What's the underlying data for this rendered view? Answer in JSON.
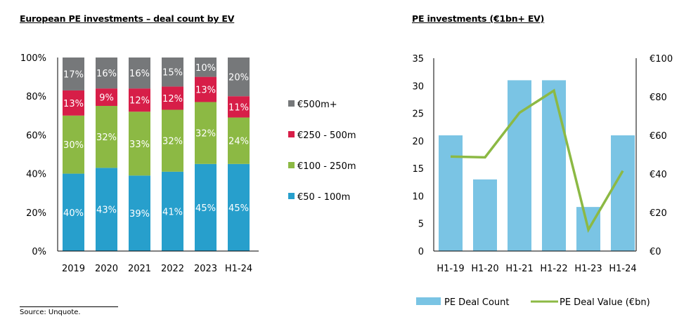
{
  "source": "Source:  Unquote.",
  "chart_data": [
    {
      "type": "bar",
      "stacked": true,
      "percent": true,
      "title": "European PE investments – deal count by EV",
      "xlabel": "",
      "ylabel": "",
      "ylim": [
        0,
        100
      ],
      "yticks": [
        "0%",
        "20%",
        "40%",
        "60%",
        "80%",
        "100%"
      ],
      "categories": [
        "2019",
        "2020",
        "2021",
        "2022",
        "2023",
        "H1-24"
      ],
      "series": [
        {
          "name": "€50 - 100m",
          "color": "#279fcc",
          "values": [
            40,
            43,
            39,
            41,
            45,
            45
          ]
        },
        {
          "name": "€100 - 250m",
          "color": "#8cb944",
          "values": [
            30,
            32,
            33,
            32,
            32,
            24
          ]
        },
        {
          "name": "€250 - 500m",
          "color": "#d71e48",
          "values": [
            13,
            9,
            12,
            12,
            13,
            11
          ]
        },
        {
          "name": "€500m+",
          "color": "#76787a",
          "values": [
            17,
            16,
            16,
            15,
            10,
            20
          ]
        }
      ],
      "legend_order": [
        "€500m+",
        "€250 - 500m",
        "€100 - 250m",
        "€50 - 100m"
      ],
      "legend": "right",
      "grid": false
    },
    {
      "type": "bar",
      "combo": "bar+line",
      "title": "PE investments (€1bn+ EV)",
      "categories": [
        "H1-19",
        "H1-20",
        "H1-21",
        "H1-22",
        "H1-23",
        "H1-24"
      ],
      "ylim": [
        0,
        35
      ],
      "yticks": [
        "0",
        "5",
        "10",
        "15",
        "20",
        "25",
        "30",
        "35"
      ],
      "y2lim": [
        0,
        100
      ],
      "y2ticks": [
        "€0",
        "€20",
        "€40",
        "€60",
        "€80",
        "€100"
      ],
      "series": [
        {
          "name": "PE Deal Count",
          "type": "bar",
          "axis": "left",
          "color": "#7ac4e4",
          "values": [
            21,
            13,
            31,
            31,
            8,
            21
          ]
        },
        {
          "name": "PE Deal Value (€bn)",
          "type": "line",
          "axis": "right",
          "color": "#8cb944",
          "values": [
            49,
            48.6,
            71.7,
            83.2,
            11.1,
            41.6
          ]
        }
      ],
      "legend": "bottom",
      "grid": false
    }
  ]
}
